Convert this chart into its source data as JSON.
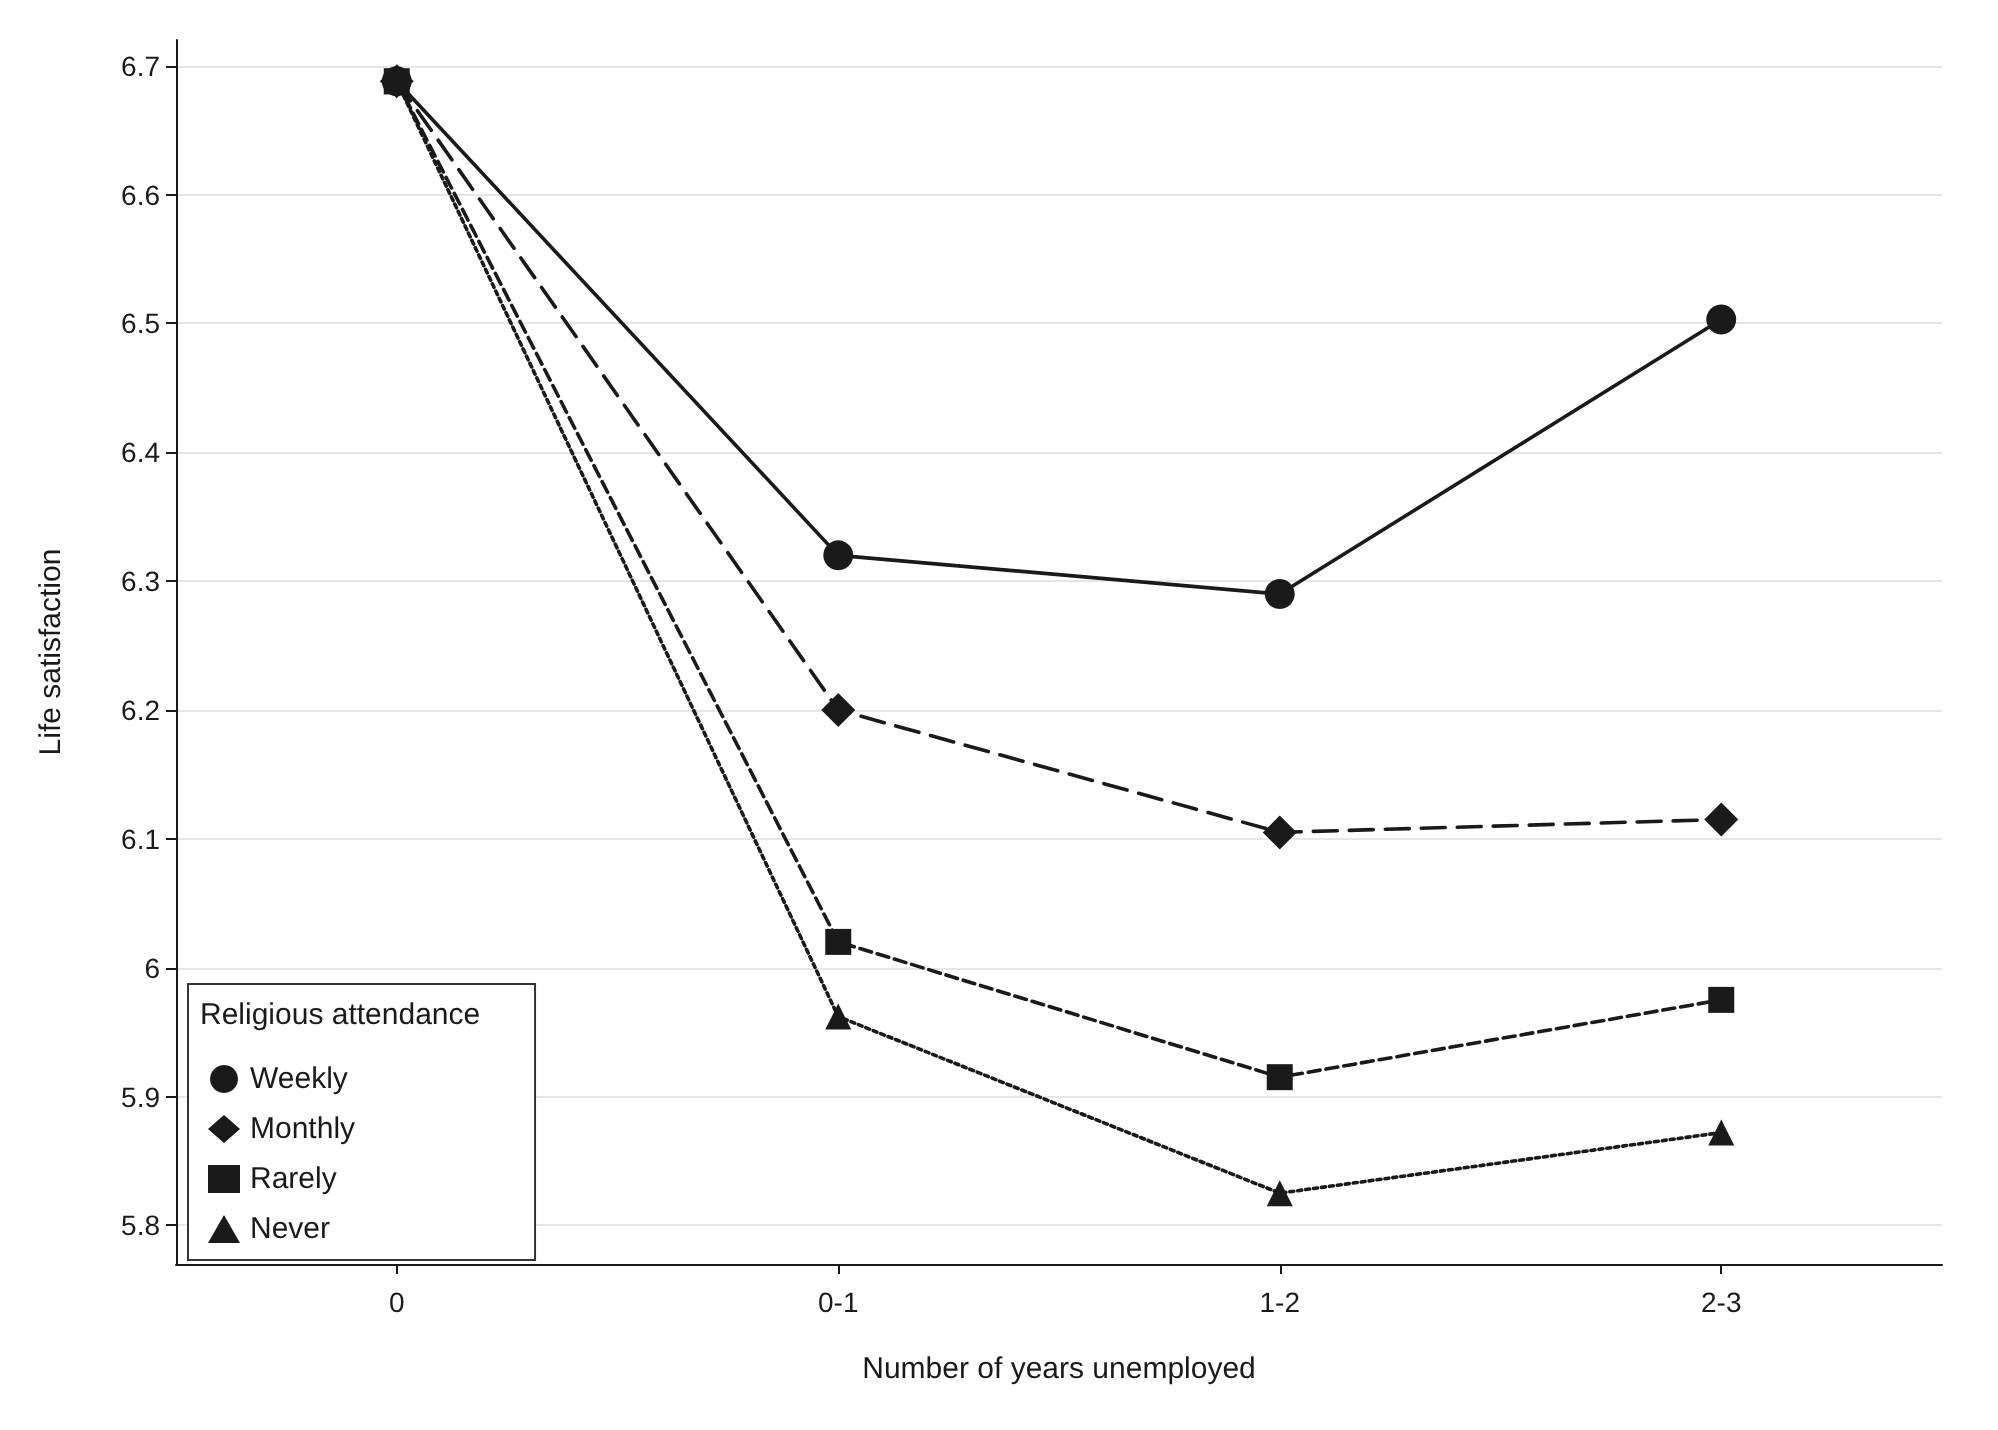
{
  "chart_data": {
    "type": "line",
    "xlabel": "Number of years unemployed",
    "ylabel": "Life satisfaction",
    "legend_title": "Religious attendance",
    "categories": [
      "0",
      "0-1",
      "1-2",
      "2-3"
    ],
    "series": [
      {
        "name": "Weekly",
        "color": "#1a1a1a",
        "marker": "circle",
        "line_style": "solid",
        "values": [
          6.688,
          6.32,
          6.29,
          6.503
        ]
      },
      {
        "name": "Monthly",
        "color": "#1a1a1a",
        "marker": "diamond",
        "line_style": "dashed",
        "values": [
          6.688,
          6.2,
          6.105,
          6.115
        ]
      },
      {
        "name": "Rarely",
        "color": "#1a1a1a",
        "marker": "square",
        "line_style": "dashed",
        "values": [
          6.688,
          6.02,
          5.915,
          5.975
        ]
      },
      {
        "name": "Never",
        "color": "#1a1a1a",
        "marker": "triangle",
        "line_style": "dotted",
        "values": [
          6.688,
          5.962,
          5.825,
          5.872
        ]
      }
    ],
    "ylim": [
      5.77,
      6.72
    ],
    "yticks": [
      5.8,
      5.9,
      6,
      6.1,
      6.2,
      6.3,
      6.4,
      6.5,
      6.6,
      6.7
    ],
    "grid": "y",
    "legend": "bottom left"
  }
}
